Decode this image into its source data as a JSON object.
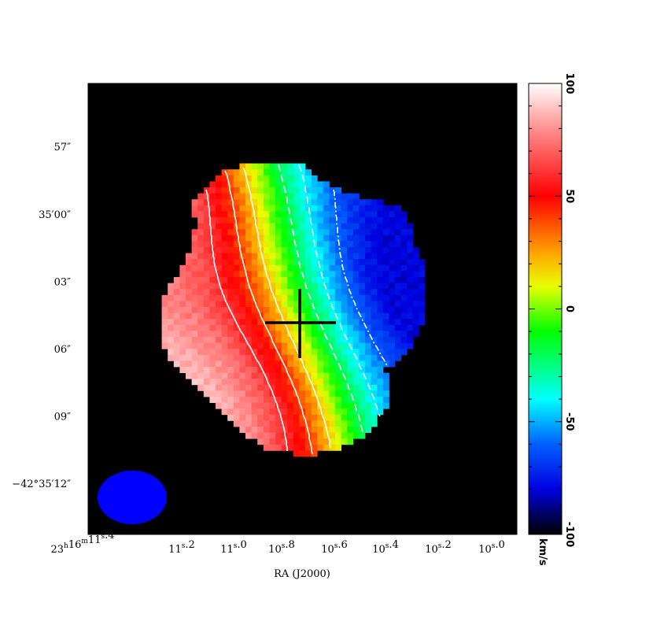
{
  "chart_data": {
    "type": "heatmap",
    "title": "",
    "xlabel": "RA (J2000)",
    "ylabel": "",
    "x_ticks": [
      {
        "pre": "23",
        "h": "h",
        "mid": "16",
        "m": "m",
        "int": "11",
        "s": "s",
        "frac": "4"
      },
      {
        "pre": "",
        "h": "",
        "mid": "",
        "m": "",
        "int": "11",
        "s": "s",
        "frac": "2"
      },
      {
        "pre": "",
        "h": "",
        "mid": "",
        "m": "",
        "int": "11",
        "s": "s",
        "frac": "0"
      },
      {
        "pre": "",
        "h": "",
        "mid": "",
        "m": "",
        "int": "10",
        "s": "s",
        "frac": "8"
      },
      {
        "pre": "",
        "h": "",
        "mid": "",
        "m": "",
        "int": "10",
        "s": "s",
        "frac": "6"
      },
      {
        "pre": "",
        "h": "",
        "mid": "",
        "m": "",
        "int": "10",
        "s": "s",
        "frac": "4"
      },
      {
        "pre": "",
        "h": "",
        "mid": "",
        "m": "",
        "int": "10",
        "s": "s",
        "frac": "2"
      },
      {
        "pre": "",
        "h": "",
        "mid": "",
        "m": "",
        "int": "10",
        "s": "s",
        "frac": "0"
      }
    ],
    "y_ticks": [
      {
        "text": "57″",
        "arcsec": 57
      },
      {
        "text": "35′00″",
        "arcsec": 60
      },
      {
        "text": "03″",
        "arcsec": 63
      },
      {
        "text": "06″",
        "arcsec": 66
      },
      {
        "text": "09″",
        "arcsec": 69
      },
      {
        "text": "−42°35′12″",
        "arcsec": 72
      }
    ],
    "colorbar": {
      "unit": "km/s",
      "ticks": [
        {
          "label": "100",
          "value": 100
        },
        {
          "label": "50",
          "value": 50
        },
        {
          "label": "0",
          "value": 0
        },
        {
          "label": "-50",
          "value": -50
        },
        {
          "label": "-100",
          "value": -100
        }
      ],
      "vmin": -100,
      "vmax": 100
    },
    "velocity_field": {
      "systemic_center_ra_s": 10.7,
      "systemic_center_dec_arcsec": 65.9,
      "min_kms": -80,
      "max_kms": 90,
      "contour_levels_kms": [
        -60,
        -40,
        -20,
        20,
        40,
        60
      ],
      "contour_color": "#ffffff",
      "negative_contours_dashed": true
    },
    "beam_color": "#0000ff",
    "background_color": "#000000",
    "center_marker_color": "#000000"
  }
}
